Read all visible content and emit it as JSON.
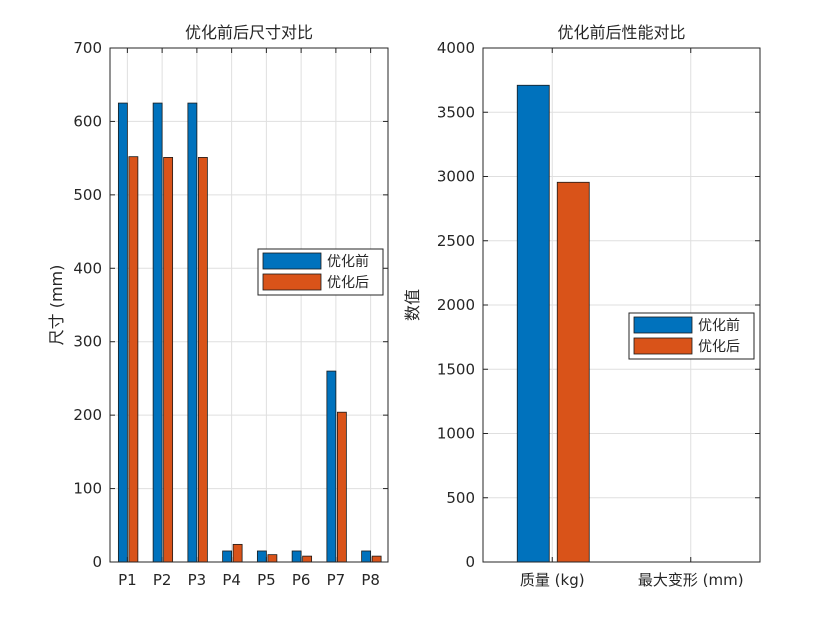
{
  "chart_data": [
    {
      "type": "bar",
      "title": "优化前后尺寸对比",
      "xlabel": "",
      "ylabel": "尺寸 (mm)",
      "categories": [
        "P1",
        "P2",
        "P3",
        "P4",
        "P5",
        "P6",
        "P7",
        "P8"
      ],
      "series": [
        {
          "name": "优化前",
          "values": [
            625,
            625,
            625,
            15,
            15,
            15,
            260,
            15
          ],
          "color": "#0072BD"
        },
        {
          "name": "优化后",
          "values": [
            552,
            551,
            551,
            24,
            10,
            8,
            204,
            8
          ],
          "color": "#D95319"
        }
      ],
      "ylim": [
        0,
        700
      ],
      "yticks": [
        0,
        100,
        200,
        300,
        400,
        500,
        600,
        700
      ],
      "grid": true,
      "legend_position": "east"
    },
    {
      "type": "bar",
      "title": "优化前后性能对比",
      "xlabel": "",
      "ylabel": "数值",
      "categories": [
        "质量 (kg)",
        "最大变形 (mm)"
      ],
      "series": [
        {
          "name": "优化前",
          "values": [
            3710,
            0
          ],
          "color": "#0072BD"
        },
        {
          "name": "优化后",
          "values": [
            2955,
            0
          ],
          "color": "#D95319"
        }
      ],
      "ylim": [
        0,
        4000
      ],
      "yticks": [
        0,
        500,
        1000,
        1500,
        2000,
        2500,
        3000,
        3500,
        4000
      ],
      "grid": true,
      "legend_position": "east"
    }
  ]
}
